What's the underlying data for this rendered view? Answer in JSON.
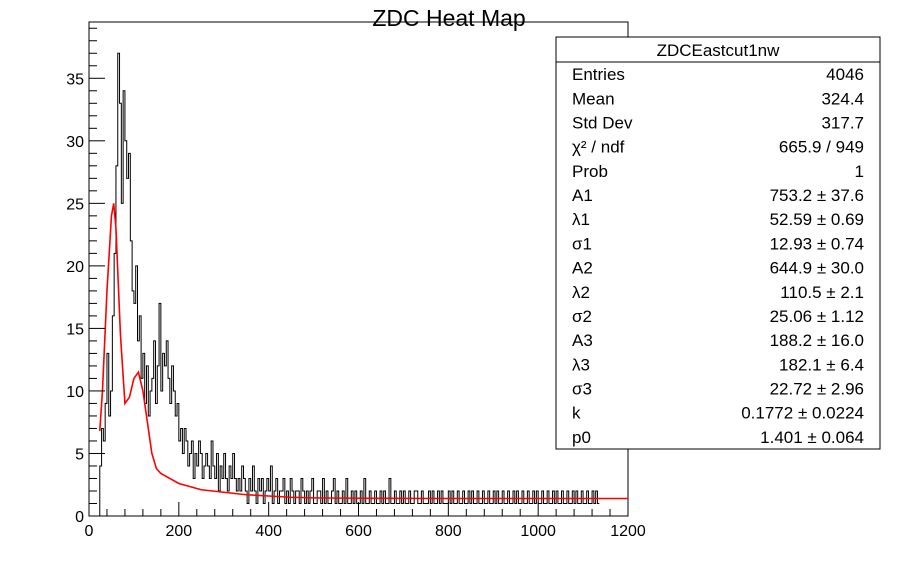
{
  "chart_data": {
    "type": "histogram",
    "title": "ZDC Heat Map",
    "xlim": [
      0,
      1200
    ],
    "ylim": [
      0,
      39.5
    ],
    "x_ticks": [
      0,
      200,
      400,
      600,
      800,
      1000,
      1200
    ],
    "y_ticks": [
      0,
      5,
      10,
      15,
      20,
      25,
      30,
      35
    ],
    "histogram_color": "#000000",
    "fit_color": "#ff0000",
    "histogram": {
      "bin_width": 4,
      "x_start": 24,
      "values": [
        4,
        7,
        6,
        9,
        13,
        8,
        10,
        16,
        21,
        28,
        37,
        33,
        25,
        34,
        30,
        27,
        29,
        22,
        18,
        17,
        20,
        14,
        16,
        11,
        13,
        9,
        12,
        8,
        10,
        11,
        14,
        9,
        12,
        17,
        10,
        13,
        12,
        14,
        11,
        9,
        12,
        10,
        8,
        9,
        6,
        7,
        5,
        7,
        6,
        4,
        5,
        6,
        3,
        5,
        4,
        6,
        5,
        3,
        4,
        5,
        4,
        3,
        6,
        4,
        3,
        5,
        2,
        4,
        3,
        5,
        3,
        2,
        4,
        3,
        5,
        3,
        2,
        3,
        2,
        4,
        3,
        2,
        1,
        3,
        2,
        4,
        2,
        1,
        3,
        2,
        3,
        1,
        2,
        3,
        2,
        4,
        1,
        2,
        3,
        1,
        2,
        2,
        3,
        1,
        2,
        1,
        3,
        2,
        1,
        2,
        2,
        1,
        3,
        2,
        1,
        2,
        1,
        2,
        3,
        1,
        1,
        2,
        2,
        1,
        3,
        1,
        2,
        1,
        1,
        2,
        3,
        1,
        2,
        1,
        1,
        2,
        1,
        3,
        1,
        1,
        2,
        1,
        2,
        1,
        1,
        2,
        1,
        3,
        1,
        1,
        2,
        1,
        1,
        2,
        1,
        1,
        2,
        1,
        2,
        1,
        1,
        3,
        1,
        1,
        2,
        1,
        1,
        2,
        1,
        2,
        1,
        1,
        2,
        1,
        1,
        2,
        2,
        1,
        1,
        2,
        1,
        1,
        1,
        2,
        1,
        2,
        1,
        1,
        2,
        1,
        2,
        1,
        1,
        1,
        2,
        1,
        2,
        1,
        1,
        2,
        1,
        1,
        2,
        1,
        1,
        2,
        1,
        2,
        1,
        1,
        2,
        1,
        1,
        2,
        1,
        1,
        2,
        1,
        1,
        2,
        1,
        2,
        1,
        1,
        2,
        1,
        1,
        2,
        1,
        1,
        2,
        1,
        2,
        1,
        1,
        2,
        1,
        1,
        2,
        1,
        1,
        2,
        1,
        2,
        1,
        1,
        2,
        1,
        1,
        2,
        1,
        1,
        2,
        1,
        2,
        1,
        1,
        2,
        1,
        1,
        2,
        1,
        1,
        2,
        1,
        2,
        1,
        1,
        2,
        1,
        1,
        2,
        1,
        1,
        2,
        1,
        2,
        1
      ]
    },
    "fit_curve": {
      "x": [
        24,
        30,
        40,
        50,
        55,
        60,
        70,
        80,
        90,
        100,
        110,
        120,
        130,
        140,
        150,
        160,
        180,
        200,
        250,
        300,
        350,
        400,
        450,
        500,
        600,
        700,
        800,
        900,
        1000,
        1100,
        1200
      ],
      "y": [
        6.8,
        10.0,
        18.0,
        24.0,
        25.0,
        23.0,
        14.5,
        9.0,
        9.5,
        11.0,
        11.5,
        10.0,
        7.5,
        5.0,
        3.8,
        3.4,
        3.0,
        2.6,
        2.1,
        1.9,
        1.7,
        1.6,
        1.5,
        1.45,
        1.42,
        1.41,
        1.4,
        1.4,
        1.4,
        1.4,
        1.4
      ]
    },
    "stats_box": {
      "title": "ZDCEastcut1nw",
      "rows": [
        {
          "label": "Entries",
          "value": "4046"
        },
        {
          "label": "Mean",
          "value": "324.4"
        },
        {
          "label": "Std Dev",
          "value": "317.7"
        },
        {
          "label": "χ² / ndf",
          "value": "665.9 / 949"
        },
        {
          "label": "Prob",
          "value": "1"
        },
        {
          "label": "A1",
          "value": "753.2 ± 37.6"
        },
        {
          "label": "λ1",
          "value": "52.59 ± 0.69"
        },
        {
          "label": "σ1",
          "value": "12.93 ± 0.74"
        },
        {
          "label": "A2",
          "value": "644.9 ± 30.0"
        },
        {
          "label": "λ2",
          "value": "110.5 ± 2.1"
        },
        {
          "label": "σ2",
          "value": "25.06 ± 1.12"
        },
        {
          "label": "A3",
          "value": "188.2 ± 16.0"
        },
        {
          "label": "λ3",
          "value": "182.1 ± 6.4"
        },
        {
          "label": "σ3",
          "value": "22.72 ± 2.96"
        },
        {
          "label": "k",
          "value": "0.1772 ± 0.0224"
        },
        {
          "label": "p0",
          "value": "1.401 ± 0.064"
        }
      ]
    }
  }
}
